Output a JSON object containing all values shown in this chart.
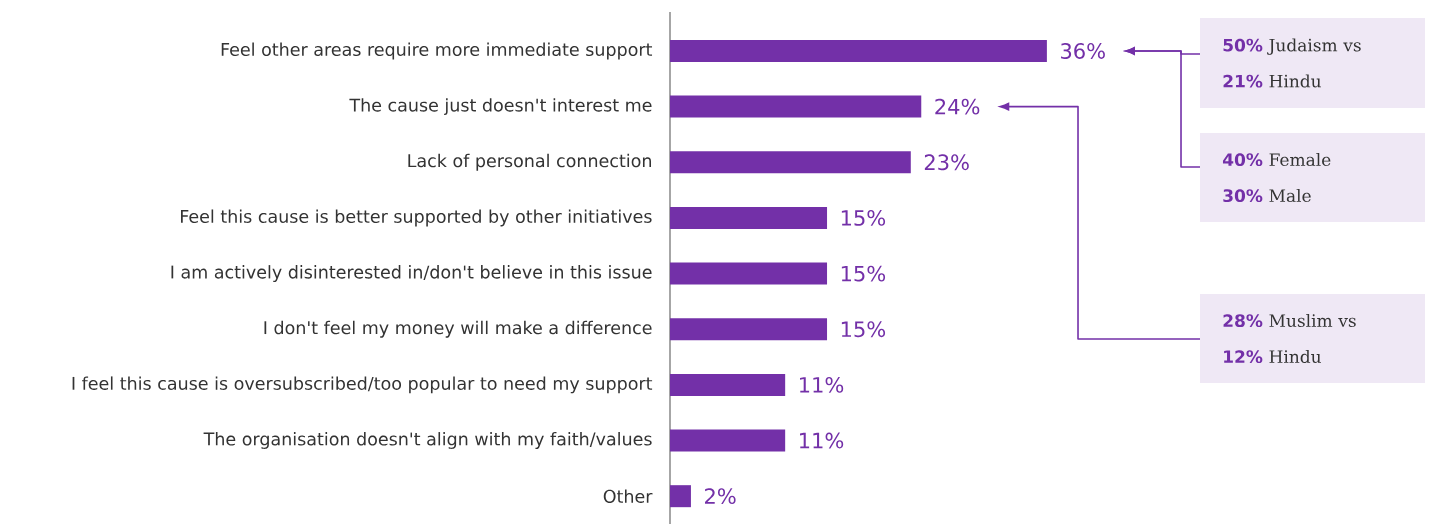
{
  "chart_data": {
    "type": "bar",
    "orientation": "horizontal",
    "color": "#7330a8",
    "categories": [
      "Feel other areas require more immediate support",
      "The cause just doesn't interest me",
      "Lack of personal connection",
      "Feel this cause is better supported by other initiatives",
      "I am actively disinterested  in/don't believe in this issue",
      "I don't feel my money will make a difference",
      "I feel this cause is oversubscribed/too popular to need my support",
      "The organisation doesn't align with my faith/values",
      "Other"
    ],
    "values": [
      36,
      24,
      23,
      15,
      15,
      15,
      11,
      11,
      2
    ],
    "value_labels": [
      "36%",
      "24%",
      "23%",
      "15%",
      "15%",
      "15%",
      "11%",
      "11%",
      "2%"
    ],
    "annotations": [
      "**50%** Judaism vs\n**21%** Hindu",
      "**40%** Female\n**30%** Male",
      "**28%** Muslim vs\n**12%** Hindu"
    ]
  }
}
